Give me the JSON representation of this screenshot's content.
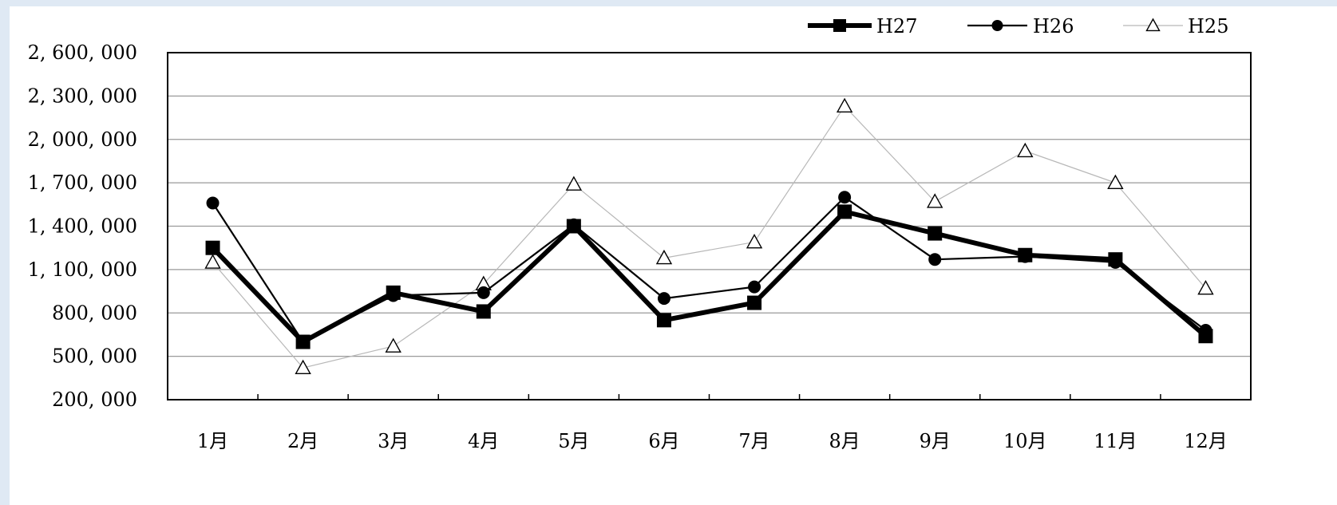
{
  "chart_data": {
    "type": "line",
    "categories": [
      "1月",
      "2月",
      "3月",
      "4月",
      "5月",
      "6月",
      "7月",
      "8月",
      "9月",
      "10月",
      "11月",
      "12月"
    ],
    "y_tick_labels": [
      "2, 600, 000",
      "2, 300, 000",
      "2, 000, 000",
      "1, 700, 000",
      "1, 400, 000",
      "1, 100, 000",
      "800, 000",
      "500, 000",
      "200, 000"
    ],
    "y_ticks": [
      2600000,
      2300000,
      2000000,
      1700000,
      1400000,
      1100000,
      800000,
      500000,
      200000
    ],
    "ylim": [
      200000,
      2600000
    ],
    "grid": true,
    "legend_position": "top-right",
    "series": [
      {
        "name": "H27",
        "marker": "square",
        "color": "#000000",
        "values": [
          1250000,
          600000,
          940000,
          810000,
          1400000,
          750000,
          870000,
          1500000,
          1350000,
          1200000,
          1170000,
          640000
        ]
      },
      {
        "name": "H26",
        "marker": "circle",
        "color": "#000000",
        "values": [
          1560000,
          600000,
          920000,
          940000,
          1410000,
          900000,
          980000,
          1600000,
          1170000,
          1190000,
          1150000,
          680000
        ]
      },
      {
        "name": "H25",
        "marker": "triangle",
        "color": "#b8b8b8",
        "values": [
          1150000,
          420000,
          570000,
          1000000,
          1690000,
          1180000,
          1290000,
          2230000,
          1570000,
          1920000,
          1700000,
          970000
        ]
      }
    ]
  }
}
